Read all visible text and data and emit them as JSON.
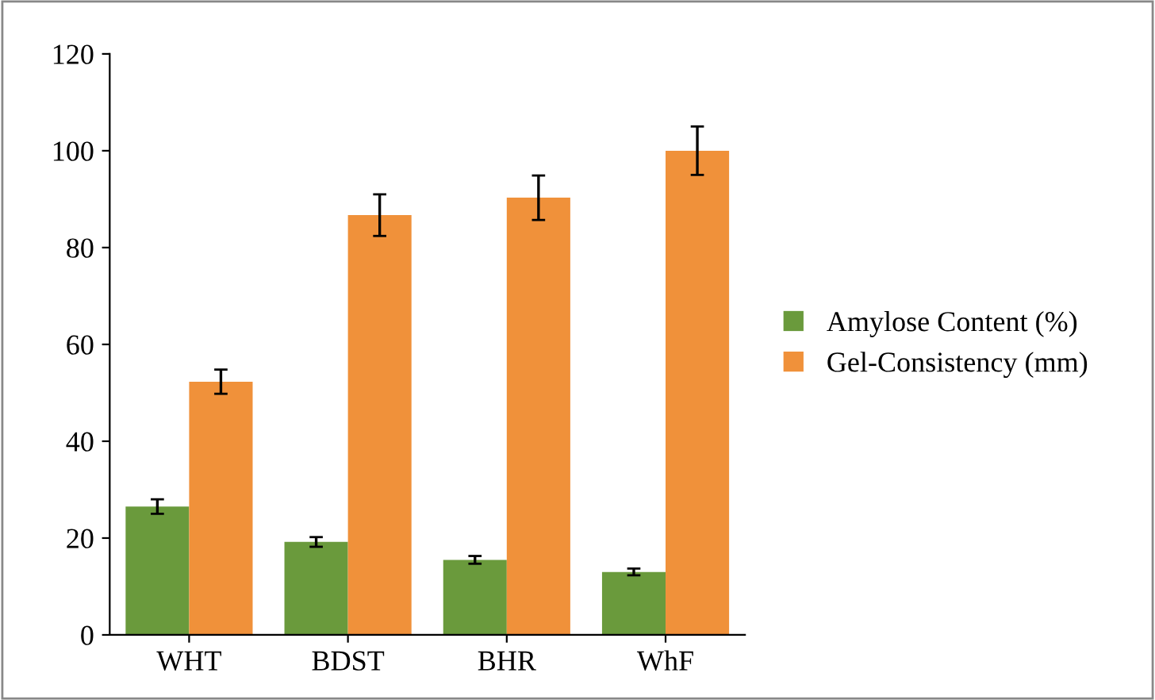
{
  "chart_data": {
    "type": "bar",
    "categories": [
      "WHT",
      "BDST",
      "BHR",
      "WhF"
    ],
    "series": [
      {
        "name": "Amylose Content (%)",
        "color": "#6a9a3c",
        "values": [
          26.5,
          19.2,
          15.5,
          13.0
        ],
        "errors": [
          1.5,
          1.0,
          0.8,
          0.7
        ]
      },
      {
        "name": "Gel-Consistency (mm)",
        "color": "#f0913a",
        "values": [
          52.3,
          86.7,
          90.3,
          100.0
        ],
        "errors": [
          2.5,
          4.3,
          4.6,
          5.0
        ]
      }
    ],
    "ylim": [
      0,
      120
    ],
    "yticks": [
      0,
      20,
      40,
      60,
      80,
      100,
      120
    ],
    "legend": "right"
  }
}
